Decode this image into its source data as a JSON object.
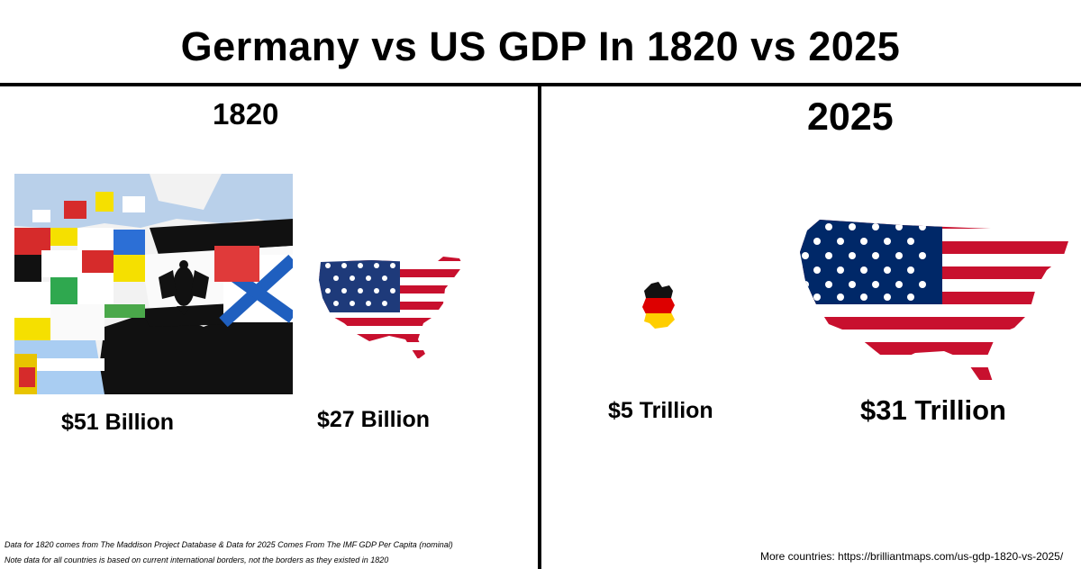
{
  "title": "Germany vs US GDP In 1820 vs 2025",
  "panels": {
    "left": {
      "year": "1820",
      "germany_value": "$51 Billion",
      "us_value": "$27 Billion"
    },
    "right": {
      "year": "2025",
      "germany_value": "$5 Trillion",
      "us_value": "$31 Trillion"
    }
  },
  "footnotes": {
    "line1": "Data for 1820 comes from The Maddison Project Database & Data for 2025 Comes From The IMF GDP Per Capita (nominal)",
    "line2": "Note data for all countries is based on current international borders, not the borders as they existed in 1820"
  },
  "more_link": "More countries: https://brilliantmaps.com/us-gdp-1820-vs-2025/",
  "images": {
    "germany_1820": "germany-1820-flags-map",
    "us_1820": "us-flag-map-small",
    "germany_2025": "germany-flag-map-small",
    "us_2025": "us-flag-map-large"
  },
  "colors": {
    "flag_red": "#c8102e",
    "flag_blue": "#002868",
    "de_red": "#dd0000",
    "de_gold": "#ffce00"
  }
}
